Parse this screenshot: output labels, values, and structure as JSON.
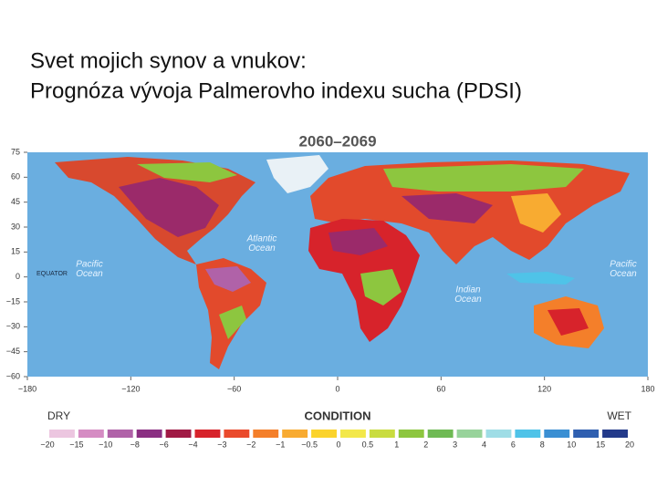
{
  "title_lines": [
    "Svet mojich synov a vnukov:",
    "Prognóza vývoja Palmerovho indexu sucha (PDSI)"
  ],
  "map": {
    "title": "2060–2069",
    "lat_ticks": [
      75,
      60,
      45,
      30,
      15,
      0,
      {
        "value": -15,
        "label": "−15"
      },
      {
        "value": -30,
        "label": "−30"
      },
      {
        "value": -45,
        "label": "−45"
      },
      {
        "value": -60,
        "label": "−60"
      }
    ],
    "lon_ticks": [
      {
        "value": -180,
        "label": "−180"
      },
      {
        "value": -120,
        "label": "−120"
      },
      {
        "value": -60,
        "label": "−60"
      },
      0,
      60,
      120,
      180
    ],
    "equator": "EQUATOR",
    "ocean_labels": [
      {
        "lines": [
          "Atlantic",
          "Ocean"
        ]
      },
      {
        "lines": [
          "Pacific",
          "Ocean"
        ]
      },
      {
        "lines": [
          "Pacific",
          "Ocean"
        ]
      },
      {
        "lines": [
          "Indian",
          "Ocean"
        ]
      }
    ]
  },
  "legend": {
    "left": "DRY",
    "title": "CONDITION",
    "right": "WET",
    "ticks": [
      {
        "value": -20,
        "label": "−20"
      },
      {
        "value": -15,
        "label": "−15"
      },
      {
        "value": -10,
        "label": "−10"
      },
      {
        "value": -8,
        "label": "−8"
      },
      {
        "value": -6,
        "label": "−6"
      },
      {
        "value": -4,
        "label": "−4"
      },
      {
        "value": -3,
        "label": "−3"
      },
      {
        "value": -2,
        "label": "−2"
      },
      {
        "value": -1,
        "label": "−1"
      },
      {
        "value": -0.5,
        "label": "−0.5"
      },
      0,
      0.5,
      1,
      2,
      3,
      4,
      6,
      8,
      10,
      15,
      20
    ],
    "colors": [
      "#ecc6e0",
      "#d58cc3",
      "#b062a8",
      "#8a2f82",
      "#a01a45",
      "#d7232b",
      "#ea4a2c",
      "#f47f2a",
      "#f8ab31",
      "#fbd32c",
      "#f3e84a",
      "#c9dc3f",
      "#8dc63f",
      "#6fba54",
      "#98d39b",
      "#9fdde6",
      "#4fc3e8",
      "#3a8fd3",
      "#2f5fb0",
      "#233a8a"
    ]
  }
}
